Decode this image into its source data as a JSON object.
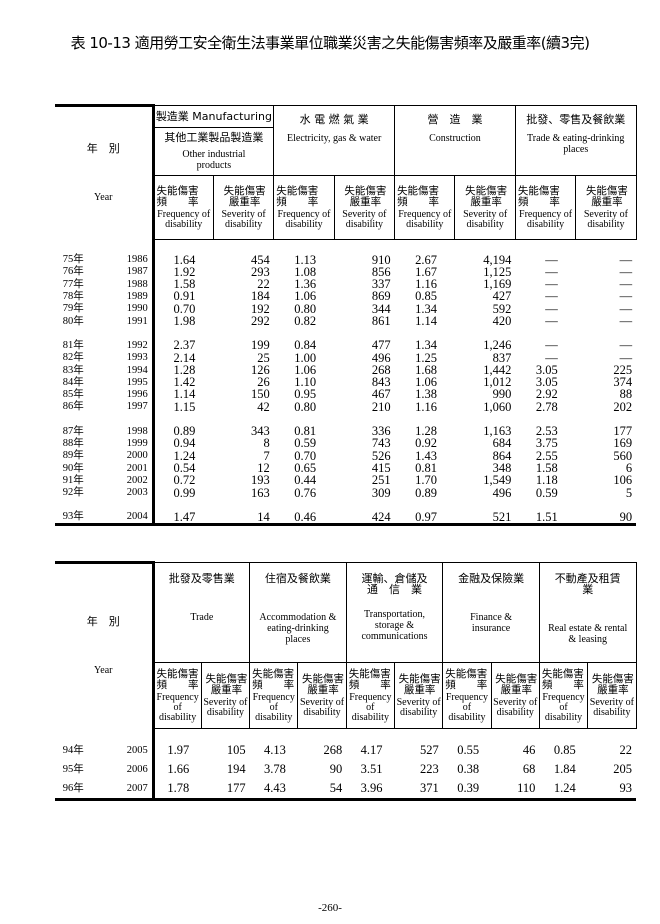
{
  "title": "表 10-13 適用勞工安全衛生法事業單位職業災害之失能傷害頻率及嚴重率(續3完)",
  "year_label_zh": "年　別",
  "year_label_en": "Year",
  "sub_freq_zh1": "失能傷害",
  "sub_freq_zh2": "頻　　率",
  "sub_freq_en": "Frequency of disability",
  "sub_sev_zh1": "失能傷害",
  "sub_sev_zh2": "嚴重率",
  "sub_sev_en": "Severity of disability",
  "table1": {
    "top_label": "製造業 Manufacturing",
    "industries": [
      {
        "zh": "其他工業製品製造業",
        "en": "Other industrial products"
      },
      {
        "zh": "水 電 燃 氣 業",
        "en": "Electricity, gas & water"
      },
      {
        "zh": "營　造　業",
        "en": "Construction"
      },
      {
        "zh": "批發、零售及餐飲業",
        "en": "Trade & eating-drinking places"
      }
    ],
    "groups": [
      [
        [
          "75年",
          "1986",
          "1.64",
          "454",
          "1.13",
          "910",
          "2.67",
          "4,194",
          "—",
          "—"
        ],
        [
          "76年",
          "1987",
          "1.92",
          "293",
          "1.08",
          "856",
          "1.67",
          "1,125",
          "—",
          "—"
        ],
        [
          "77年",
          "1988",
          "1.58",
          "22",
          "1.36",
          "337",
          "1.16",
          "1,169",
          "—",
          "—"
        ],
        [
          "78年",
          "1989",
          "0.91",
          "184",
          "1.06",
          "869",
          "0.85",
          "427",
          "—",
          "—"
        ],
        [
          "79年",
          "1990",
          "0.70",
          "192",
          "0.80",
          "344",
          "1.34",
          "592",
          "—",
          "—"
        ],
        [
          "80年",
          "1991",
          "1.98",
          "292",
          "0.82",
          "861",
          "1.14",
          "420",
          "—",
          "—"
        ]
      ],
      [
        [
          "81年",
          "1992",
          "2.37",
          "199",
          "0.84",
          "477",
          "1.34",
          "1,246",
          "—",
          "—"
        ],
        [
          "82年",
          "1993",
          "2.14",
          "25",
          "1.00",
          "496",
          "1.25",
          "837",
          "—",
          "—"
        ],
        [
          "83年",
          "1994",
          "1.28",
          "126",
          "1.06",
          "268",
          "1.68",
          "1,442",
          "3.05",
          "225"
        ],
        [
          "84年",
          "1995",
          "1.42",
          "26",
          "1.10",
          "843",
          "1.06",
          "1,012",
          "3.05",
          "374"
        ],
        [
          "85年",
          "1996",
          "1.14",
          "150",
          "0.95",
          "467",
          "1.38",
          "990",
          "2.92",
          "88"
        ],
        [
          "86年",
          "1997",
          "1.15",
          "42",
          "0.80",
          "210",
          "1.16",
          "1,060",
          "2.78",
          "202"
        ]
      ],
      [
        [
          "87年",
          "1998",
          "0.89",
          "343",
          "0.81",
          "336",
          "1.28",
          "1,163",
          "2.53",
          "177"
        ],
        [
          "88年",
          "1999",
          "0.94",
          "8",
          "0.59",
          "743",
          "0.92",
          "684",
          "3.75",
          "169"
        ],
        [
          "89年",
          "2000",
          "1.24",
          "7",
          "0.70",
          "526",
          "1.43",
          "864",
          "2.55",
          "560"
        ],
        [
          "90年",
          "2001",
          "0.54",
          "12",
          "0.65",
          "415",
          "0.81",
          "348",
          "1.58",
          "6"
        ],
        [
          "91年",
          "2002",
          "0.72",
          "193",
          "0.44",
          "251",
          "1.70",
          "1,549",
          "1.18",
          "106"
        ],
        [
          "92年",
          "2003",
          "0.99",
          "163",
          "0.76",
          "309",
          "0.89",
          "496",
          "0.59",
          "5"
        ]
      ],
      [
        [
          "93年",
          "2004",
          "1.47",
          "14",
          "0.46",
          "424",
          "0.97",
          "521",
          "1.51",
          "90"
        ]
      ]
    ]
  },
  "table2": {
    "industries": [
      {
        "zh": "批發及零售業",
        "en": "Trade"
      },
      {
        "zh": "住宿及餐飲業",
        "en": "Accommodation & eating-drinking places"
      },
      {
        "zh": "運輸、倉儲及 通　信　業",
        "en": "Transportation, storage & communications"
      },
      {
        "zh": "金融及保險業",
        "en": "Finance & insurance"
      },
      {
        "zh": "不動產及租賃業",
        "en": "Real estate & rental & leasing"
      }
    ],
    "rows": [
      [
        "94年",
        "2005",
        "1.97",
        "105",
        "4.13",
        "268",
        "4.17",
        "527",
        "0.55",
        "46",
        "0.85",
        "22"
      ],
      [
        "95年",
        "2006",
        "1.66",
        "194",
        "3.78",
        "90",
        "3.51",
        "223",
        "0.38",
        "68",
        "1.84",
        "205"
      ],
      [
        "96年",
        "2007",
        "1.78",
        "177",
        "4.43",
        "54",
        "3.96",
        "371",
        "0.39",
        "110",
        "1.24",
        "93"
      ]
    ]
  },
  "page_number": "-260-"
}
